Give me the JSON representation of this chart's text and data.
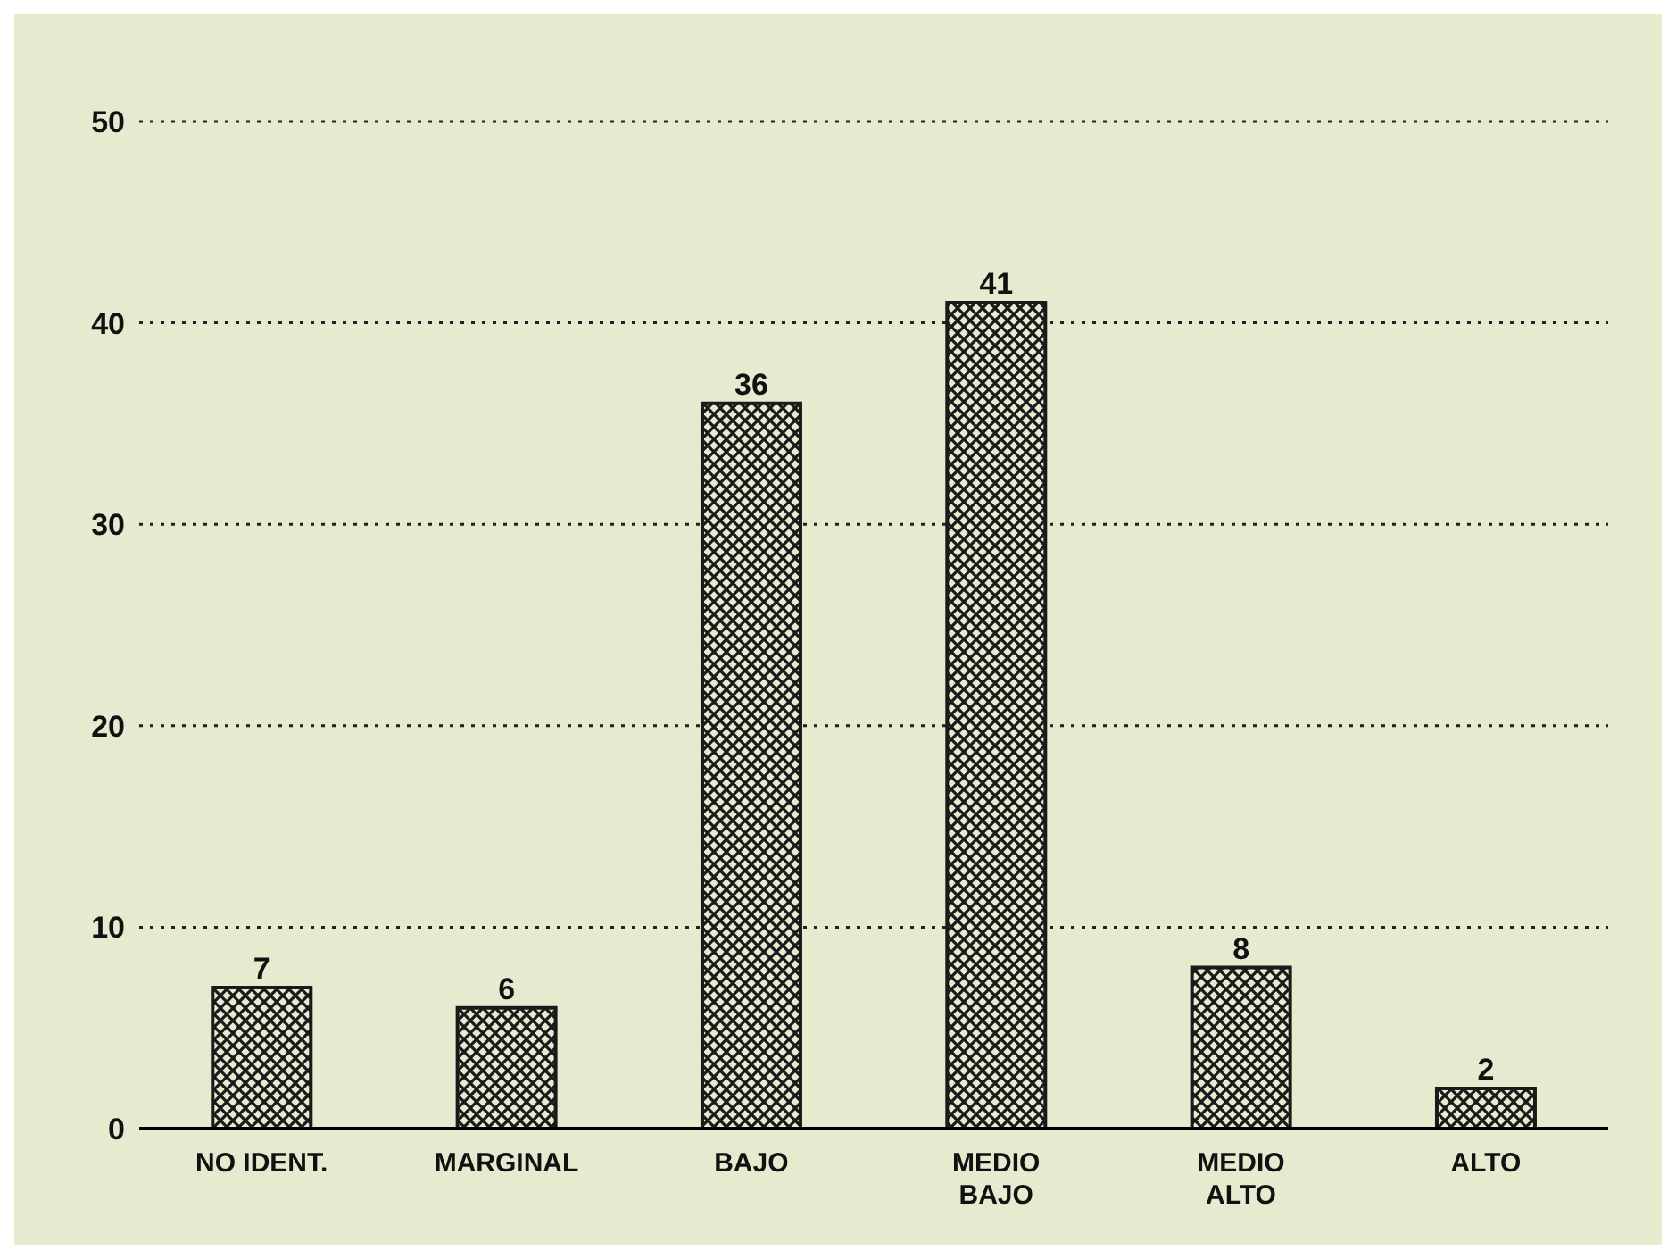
{
  "chart_data": {
    "type": "bar",
    "categories": [
      "NO IDENT.",
      "MARGINAL",
      "BAJO",
      "MEDIO\nBAJO",
      "MEDIO\nALTO",
      "ALTO"
    ],
    "values": [
      7,
      6,
      36,
      41,
      8,
      2
    ],
    "color": "#1a1a1a",
    "ylim": [
      0,
      50
    ],
    "yticks": [
      0,
      10,
      20,
      30,
      40,
      50
    ],
    "grid": "y",
    "data_labels": true
  }
}
